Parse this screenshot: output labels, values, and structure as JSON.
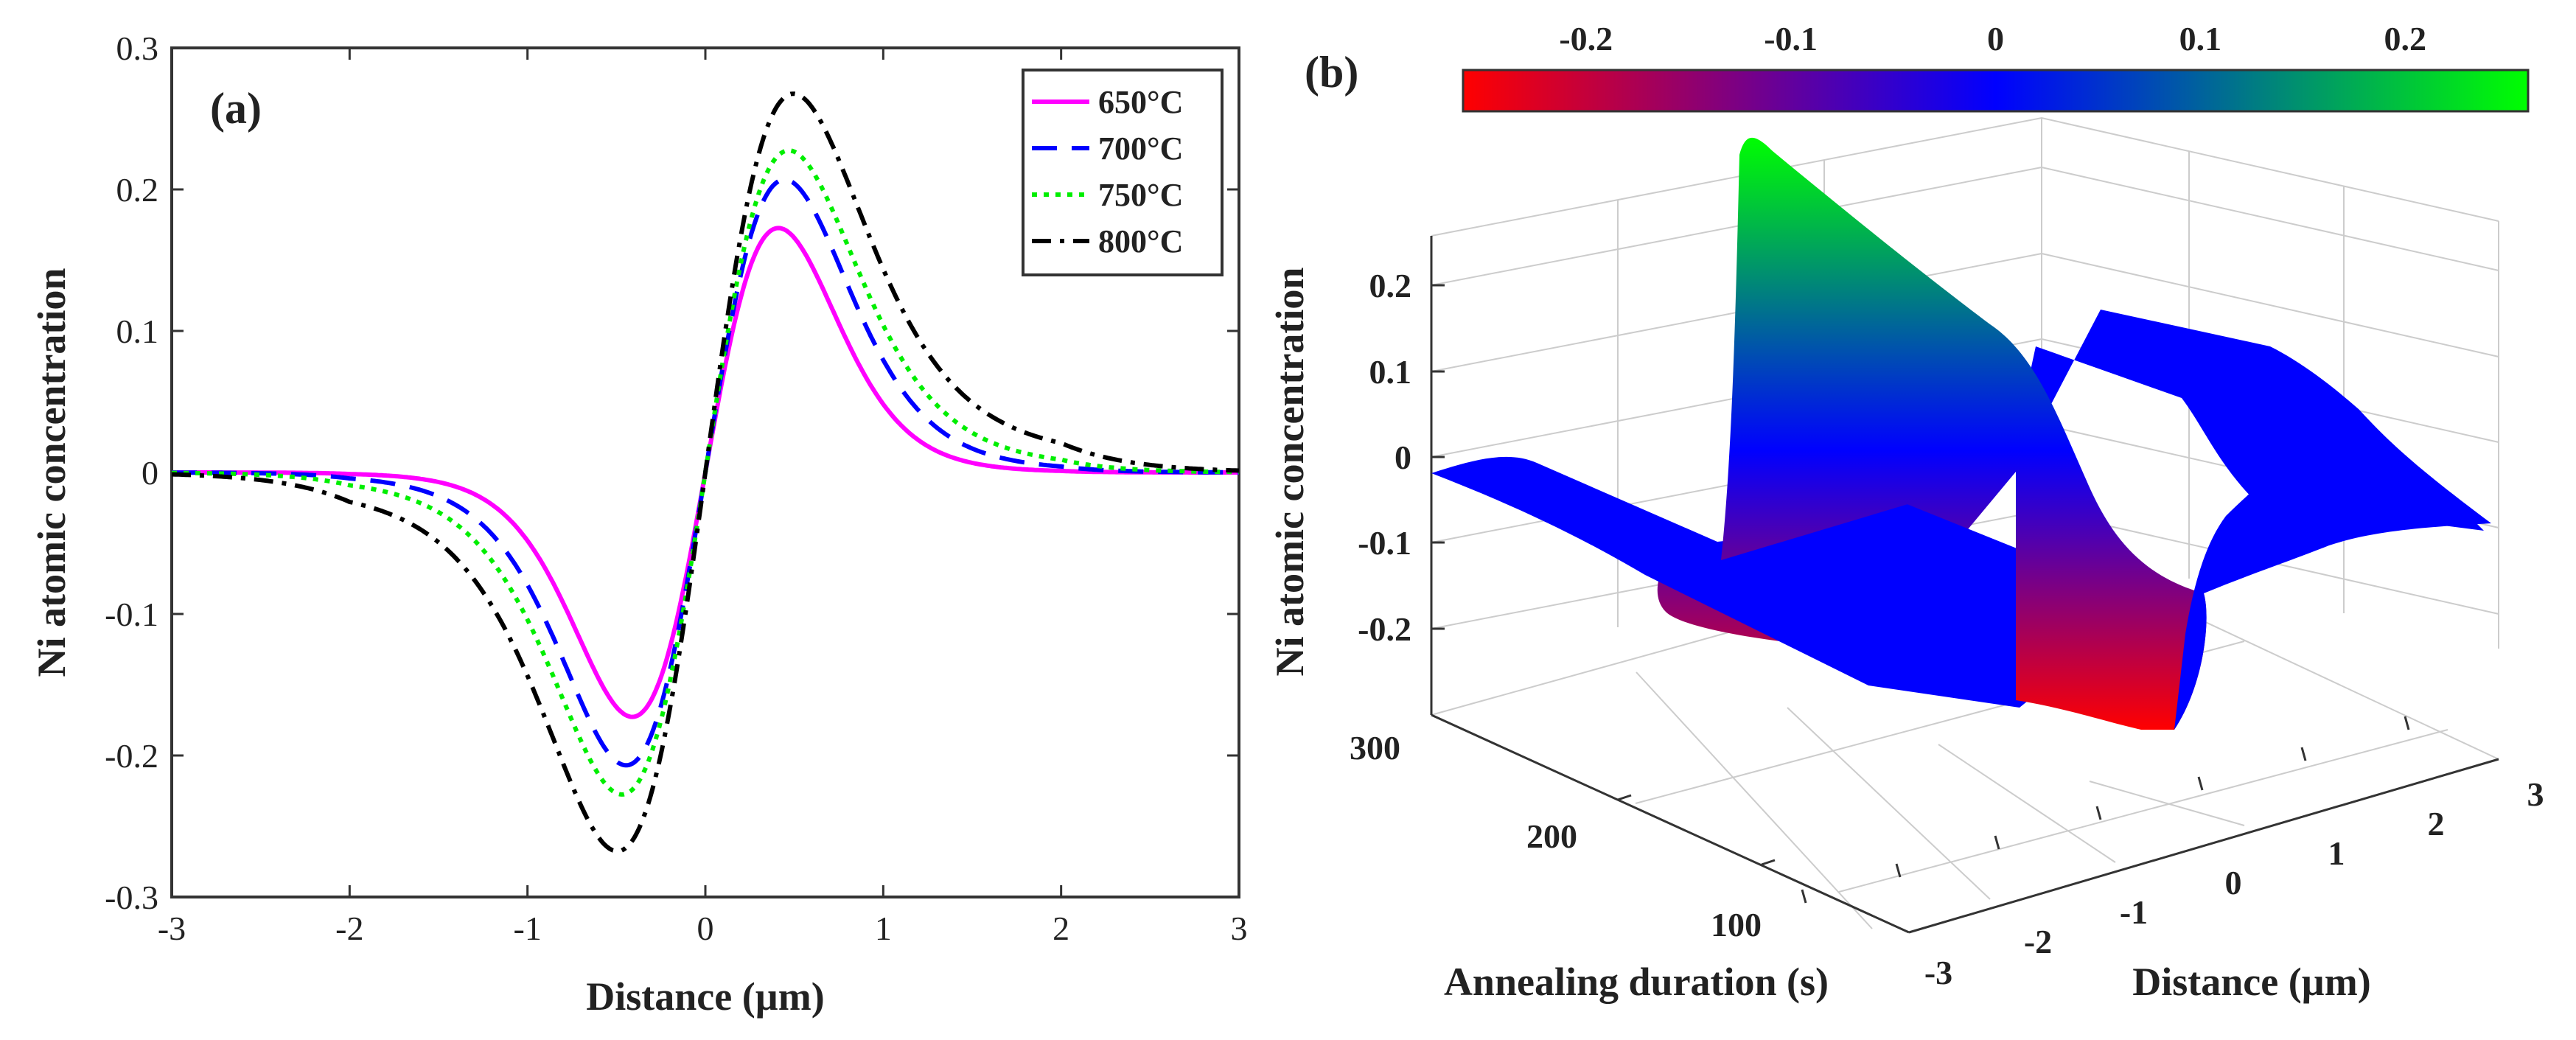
{
  "chart_data": [
    {
      "panel": "(a)",
      "type": "line",
      "xlabel": "Distance (µm)",
      "ylabel": "Ni atomic concentration",
      "xlim": [
        -3,
        3
      ],
      "ylim": [
        -0.3,
        0.3
      ],
      "xticks": [
        "-3",
        "-2",
        "-1",
        "0",
        "1",
        "2",
        "3"
      ],
      "yticks": [
        "0.3",
        "0.2",
        "0.1",
        "0",
        "-0.1",
        "-0.2",
        "-0.3"
      ],
      "legend_position": "top-right",
      "series": [
        {
          "name": "650°C",
          "color": "#ff00ff",
          "dash": "solid",
          "amplitude": 0.17,
          "peak_x": 0.38,
          "width": 0.4,
          "tail": 0.55,
          "x": [
            -3,
            -2,
            -1,
            -0.6,
            -0.4,
            -0.2,
            0,
            0.2,
            0.4,
            0.6,
            1,
            2,
            3
          ],
          "y": [
            0,
            -0.001,
            -0.05,
            -0.14,
            -0.17,
            -0.13,
            0,
            0.13,
            0.17,
            0.14,
            0.06,
            0.001,
            0
          ]
        },
        {
          "name": "700°C",
          "color": "#0000ff",
          "dash": "dashed",
          "amplitude": 0.203,
          "peak_x": 0.41,
          "width": 0.43,
          "tail": 0.65,
          "x": [
            -3,
            -2,
            -1,
            -0.6,
            -0.4,
            -0.2,
            0,
            0.2,
            0.4,
            0.6,
            1,
            2,
            3
          ],
          "y": [
            0,
            -0.003,
            -0.07,
            -0.17,
            -0.203,
            -0.16,
            0,
            0.16,
            0.203,
            0.17,
            0.08,
            0.003,
            0
          ]
        },
        {
          "name": "750°C",
          "color": "#00ee00",
          "dash": "dotted",
          "amplitude": 0.222,
          "peak_x": 0.42,
          "width": 0.45,
          "tail": 0.73,
          "x": [
            -3,
            -2,
            -1,
            -0.6,
            -0.4,
            -0.2,
            0,
            0.2,
            0.4,
            0.6,
            1,
            2,
            3
          ],
          "y": [
            0,
            -0.005,
            -0.09,
            -0.19,
            -0.222,
            -0.18,
            0,
            0.18,
            0.222,
            0.19,
            0.1,
            0.005,
            0
          ]
        },
        {
          "name": "800°C",
          "color": "#000000",
          "dash": "dashdot",
          "amplitude": 0.26,
          "peak_x": 0.44,
          "width": 0.47,
          "tail": 0.85,
          "x": [
            -3,
            -2,
            -1,
            -0.6,
            -0.4,
            -0.2,
            0,
            0.2,
            0.4,
            0.6,
            1,
            2,
            3
          ],
          "y": [
            0,
            -0.01,
            -0.13,
            -0.23,
            -0.26,
            -0.21,
            0,
            0.21,
            0.26,
            0.23,
            0.13,
            0.01,
            0
          ]
        }
      ]
    },
    {
      "panel": "(b)",
      "type": "surface",
      "xlabel": "Distance (µm)",
      "ylabel": "Annealing duration (s)",
      "zlabel": "Ni atomic concentration",
      "x_range": [
        -3,
        3
      ],
      "y_range": [
        60,
        300
      ],
      "z_range": [
        -0.25,
        0.26
      ],
      "xticks": [
        "-3",
        "-2",
        "-1",
        "0",
        "1",
        "2",
        "3"
      ],
      "yticks": [
        "300",
        "200",
        "100"
      ],
      "zticks": [
        "0.2",
        "0.1",
        "0",
        "-0.1",
        "-0.2"
      ],
      "colorbar": {
        "range": [
          -0.26,
          0.26
        ],
        "ticks": [
          -0.2,
          -0.1,
          0,
          0.1,
          0.2
        ],
        "tick_labels": [
          "-0.2",
          "-0.1",
          "0",
          "0.1",
          "0.2"
        ],
        "colors": [
          "#ff0000",
          "#0000ff",
          "#00ff00"
        ]
      }
    }
  ]
}
